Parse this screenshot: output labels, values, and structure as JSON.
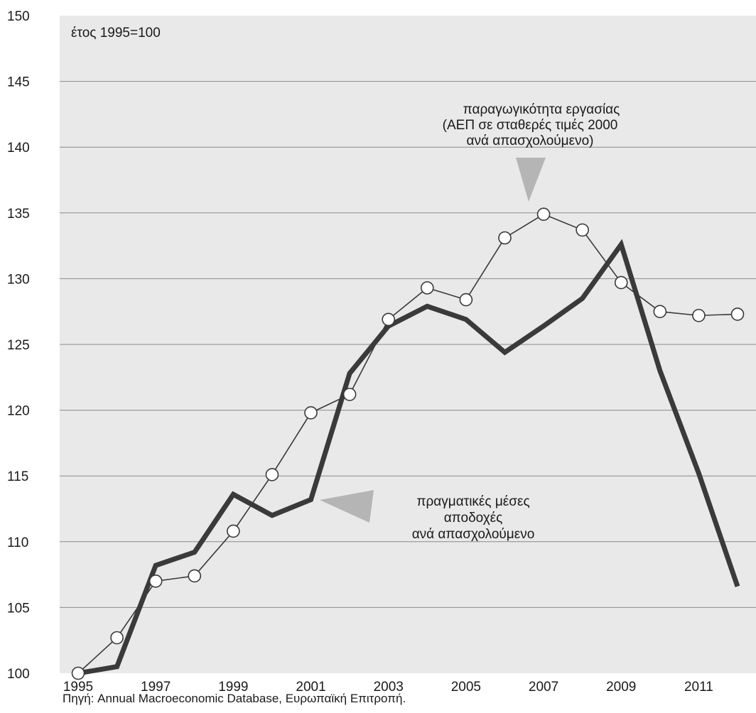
{
  "chart_data": {
    "type": "line",
    "unit_note": "έτος 1995=100",
    "x": [
      1995,
      1996,
      1997,
      1998,
      1999,
      2000,
      2001,
      2002,
      2003,
      2004,
      2005,
      2006,
      2007,
      2008,
      2009,
      2010,
      2011,
      2012
    ],
    "x_ticks": [
      "1995",
      "1997",
      "1999",
      "2001",
      "2003",
      "2005",
      "2007",
      "2009",
      "2011"
    ],
    "y_ticks": [
      "100",
      "105",
      "110",
      "115",
      "120",
      "125",
      "130",
      "135",
      "140",
      "145",
      "150"
    ],
    "ylim": [
      100,
      150
    ],
    "grid": true,
    "series": [
      {
        "name": "παραγωγικότητα εργασίας (ΑΕΠ σε σταθερές τιμές 2000 ανά απασχολούμενο)",
        "style": "thin-line-open-circles",
        "color": "#3a3a3a",
        "values": [
          100.0,
          102.7,
          107.0,
          107.4,
          110.8,
          115.1,
          119.8,
          121.2,
          126.9,
          129.3,
          128.4,
          133.1,
          134.9,
          133.7,
          129.7,
          127.5,
          127.2,
          127.3
        ]
      },
      {
        "name": "πραγματικές μέσες αποδοχές ανά απασχολούμενο",
        "style": "thick-line",
        "color": "#3a3a3a",
        "values": [
          100.0,
          100.5,
          108.2,
          109.2,
          113.6,
          112.0,
          113.2,
          122.8,
          126.4,
          127.9,
          126.9,
          124.4,
          126.4,
          128.5,
          132.6,
          123.0,
          115.2,
          106.6
        ]
      }
    ],
    "annotations": {
      "productivity": [
        "παραγωγικότητα εργασίας",
        "(ΑΕΠ σε σταθερές τιμές 2000",
        "ανά απασχολούμενο)"
      ],
      "wages": [
        "πραγματικές μέσες",
        "αποδοχές",
        "ανά απασχολούμενο"
      ]
    },
    "source": "Πηγή: Annual Macroeconomic Database, Ευρωπαϊκή Επιτροπή."
  }
}
